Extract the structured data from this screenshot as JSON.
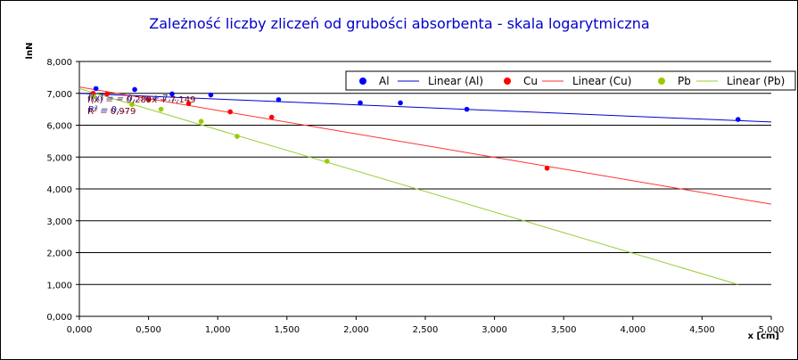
{
  "chart_data": {
    "type": "scatter",
    "title": "Zależność liczby zliczeń od grubości absorbenta - skala logarytmiczna",
    "xlabel": "x [cm]",
    "ylabel": "lnN",
    "xlim": [
      0,
      5
    ],
    "ylim": [
      0,
      8
    ],
    "x_ticks": [
      "0,000",
      "0,500",
      "1,000",
      "1,500",
      "2,000",
      "2,500",
      "3,000",
      "3,500",
      "4,000",
      "4,500",
      "5,000"
    ],
    "y_ticks": [
      "0,000",
      "1,000",
      "2,000",
      "3,000",
      "4,000",
      "5,000",
      "6,000",
      "7,000",
      "8,000"
    ],
    "grid": "horizontal",
    "legend_position": "top-right",
    "series": [
      {
        "name": "Al",
        "color": "#0000ff",
        "x": [
          0.12,
          0.4,
          0.67,
          0.95,
          1.44,
          2.03,
          2.32,
          2.8,
          4.76
        ],
        "y": [
          7.15,
          7.12,
          6.98,
          6.95,
          6.8,
          6.7,
          6.7,
          6.5,
          6.18
        ]
      },
      {
        "name": "Cu",
        "color": "#ff0000",
        "x": [
          0.1,
          0.2,
          0.5,
          0.79,
          1.09,
          1.39,
          3.38
        ],
        "y": [
          7.0,
          6.98,
          6.8,
          6.68,
          6.42,
          6.25,
          4.65
        ]
      },
      {
        "name": "Pb",
        "color": "#99cc00",
        "x": [
          0.1,
          0.38,
          0.59,
          0.88,
          1.14,
          1.79
        ],
        "y": [
          6.9,
          6.65,
          6.5,
          6.12,
          5.65,
          4.87
        ]
      }
    ],
    "trendlines": [
      {
        "name": "Linear (Al)",
        "color": "#0000cc",
        "x": [
          0,
          5
        ],
        "y": [
          7.0,
          6.1
        ]
      },
      {
        "name": "Linear (Cu)",
        "color": "#ff3333",
        "x": [
          0,
          5
        ],
        "y": [
          7.2,
          3.52
        ]
      },
      {
        "name": "Linear (Pb)",
        "color": "#99cc33",
        "x": [
          0,
          4.76
        ],
        "y": [
          7.15,
          1.0
        ]
      }
    ],
    "annotations": [
      {
        "text": "f(x) = − 0,289x + 7,149",
        "color": "#7f0000"
      },
      {
        "text": "R² = 0,979",
        "color": "#7f0000"
      },
      {
        "text": "f(x) = − 0,...x + 7,...",
        "color": "#2020aa"
      },
      {
        "text": "R² = 0,...",
        "color": "#2020aa"
      }
    ]
  }
}
